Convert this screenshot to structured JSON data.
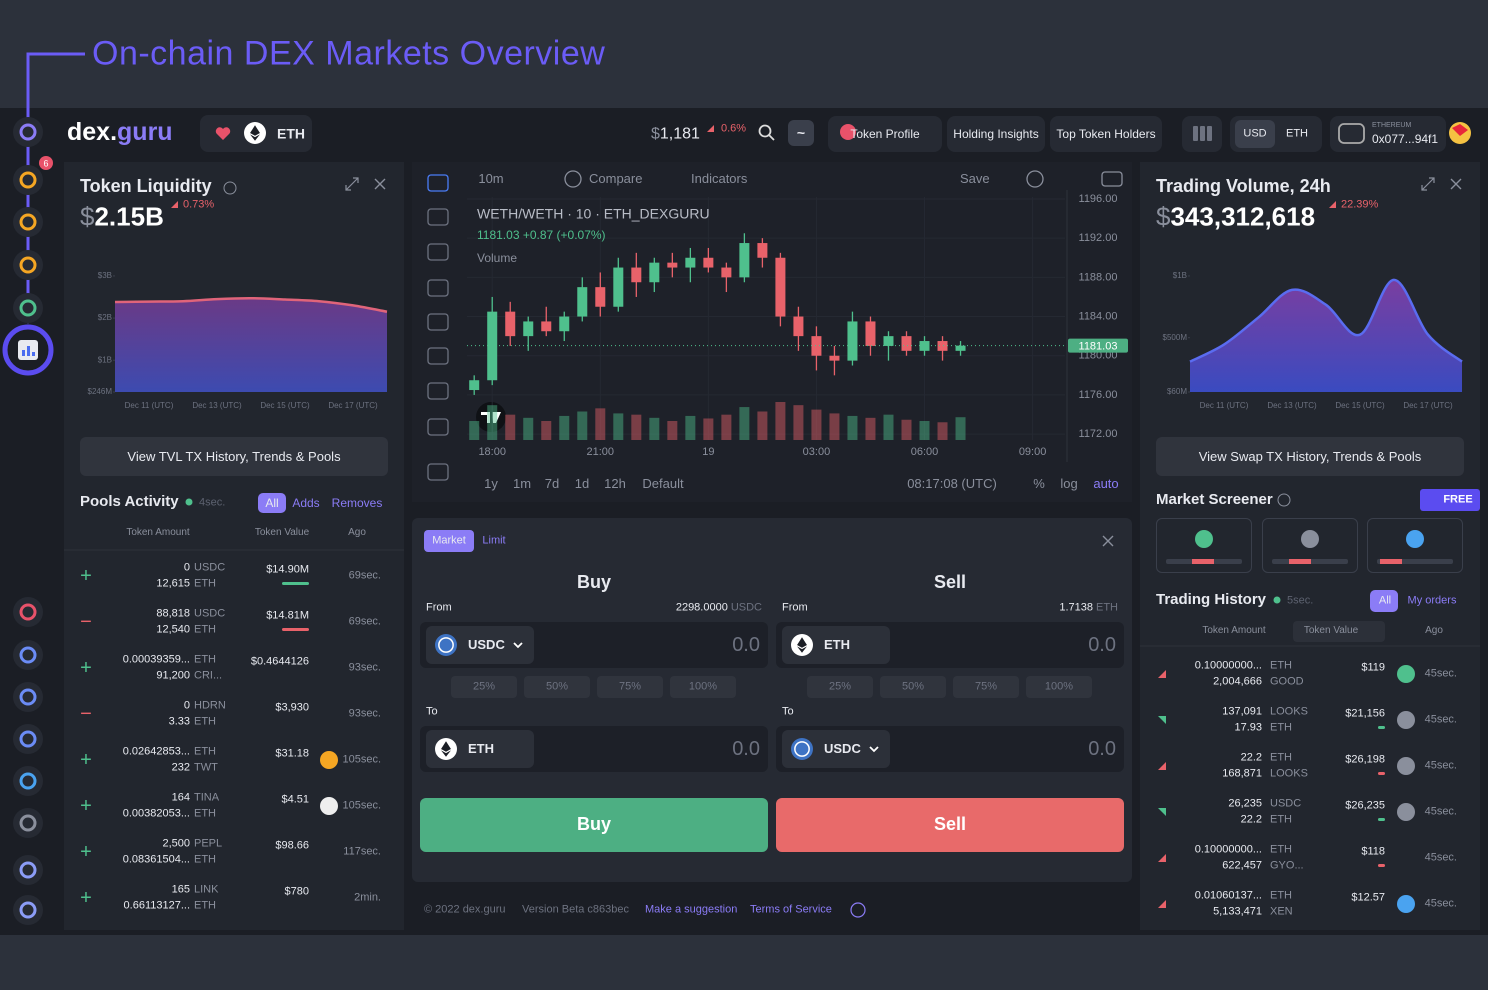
{
  "header": {
    "title": "On-chain DEX Markets Overview"
  },
  "topbar": {
    "logo_dex": "dex.",
    "logo_guru": "guru",
    "token": "ETH",
    "price_currency": "$",
    "price": "1,181",
    "price_change": "0.6%",
    "search_mode": "~",
    "links": [
      "Token Profile",
      "Holding Insights",
      "Top Token Holders"
    ],
    "currencies": [
      "USD",
      "ETH"
    ],
    "network": "ETHEREUM",
    "wallet": "0x077...94f1"
  },
  "sidebar": {
    "notification_count": 6
  },
  "liquidity": {
    "title": "Token Liquidity",
    "currency": "$",
    "value": "2.15B",
    "change": "0.73%",
    "chart": {
      "type": "area",
      "color": "#e0647a",
      "categories": [
        null,
        "Dec 11 (UTC)",
        null,
        "Dec 13 (UTC)",
        null,
        "Dec 15 (UTC)",
        null,
        "Dec 17 (UTC)",
        null
      ],
      "values": [
        2380000000,
        2390000000,
        2400000000,
        2450000000,
        2470000000,
        2440000000,
        2400000000,
        2300000000,
        2150000000
      ],
      "ylim": [
        246000000,
        3330000000
      ],
      "yticks": [
        {
          "value": 246000000,
          "label": "$246M"
        },
        {
          "value": 1000000000,
          "label": "$1B"
        },
        {
          "value": 2000000000,
          "label": "$2B"
        },
        {
          "value": 3000000000,
          "label": "$3B"
        }
      ]
    },
    "button": "View TVL TX History, Trends & Pools"
  },
  "pools": {
    "title": "Pools Activity",
    "refresh": "4sec.",
    "tabs": [
      "All",
      "Adds",
      "Removes"
    ],
    "columns": [
      "Token Amount",
      "Token Value",
      "Ago"
    ],
    "rows": [
      [
        "+",
        "0",
        "USDC",
        "12,615",
        "ETH",
        "$14.90M",
        "69sec."
      ],
      [
        "−",
        "88,818",
        "USDC",
        "12,540",
        "ETH",
        "$14.81M",
        "69sec."
      ],
      [
        "+",
        "0.00039359...",
        "ETH",
        "91,200",
        "CRI...",
        "$0.4644126",
        "93sec."
      ],
      [
        "−",
        "0",
        "HDRN",
        "3.33",
        "ETH",
        "$3,930",
        "93sec."
      ],
      [
        "+",
        "0.02642853...",
        "ETH",
        "232",
        "TWT",
        "$31.18",
        "105sec."
      ],
      [
        "+",
        "164",
        "TINA",
        "0.00382053...",
        "ETH",
        "$4.51",
        "105sec."
      ],
      [
        "+",
        "2,500",
        "PEPL",
        "0.08361504...",
        "ETH",
        "$98.66",
        "117sec."
      ],
      [
        "+",
        "165",
        "LINK",
        "0.66113127...",
        "ETH",
        "$780",
        "2min."
      ]
    ],
    "row_colors": [
      "#4fc08d",
      "#e8626a",
      "#4fc08d",
      "#e8626a",
      "#4fc08d",
      "#4fc08d",
      "#4fc08d",
      "#4fc08d"
    ]
  },
  "chart": {
    "interval": "10m",
    "compare": "Compare",
    "indicators": "Indicators",
    "save": "Save",
    "symbol": "WETH/WETH · 10 · ETH_DEXGURU",
    "legend": "1181.03 +0.87 (+0.07%)",
    "volume_label": "Volume",
    "ranges": [
      "1y",
      "1m",
      "7d",
      "1d",
      "12h"
    ],
    "default": "Default",
    "clock": "08:17:08 (UTC)",
    "scale_options": [
      "%",
      "log",
      "auto"
    ],
    "candles": {
      "type": "candlestick",
      "grid": true,
      "colors": {
        "up": "#4fc08d",
        "down": "#e8626a"
      },
      "x": [
        17.5,
        18,
        18.5,
        19,
        19.5,
        20,
        20.5,
        21,
        21.5,
        22,
        22.5,
        23,
        23.5,
        24,
        24.5,
        25,
        25.5,
        26,
        26.5,
        27,
        27.5,
        28,
        28.5,
        29,
        29.5,
        30,
        30.5,
        31
      ],
      "open": [
        1176.5,
        1177.5,
        1184.5,
        1182,
        1183.5,
        1182.5,
        1184,
        1187,
        1185,
        1189,
        1187.5,
        1189.5,
        1189,
        1190,
        1189,
        1188,
        1191.5,
        1190,
        1184,
        1182,
        1180,
        1179.5,
        1183.5,
        1181,
        1182,
        1180.5,
        1181.5,
        1180.5
      ],
      "high": [
        1178,
        1186,
        1185.5,
        1184,
        1185,
        1184.5,
        1188,
        1188.5,
        1190,
        1190.5,
        1190,
        1190.5,
        1191,
        1191,
        1189.5,
        1192.5,
        1192,
        1190.5,
        1185,
        1183,
        1181,
        1184.5,
        1184,
        1182.5,
        1182.5,
        1182,
        1182,
        1181.5
      ],
      "low": [
        1176,
        1177,
        1181,
        1180.5,
        1182,
        1181.5,
        1183.5,
        1184,
        1184.5,
        1186,
        1186.5,
        1188,
        1187.5,
        1188.5,
        1186.5,
        1187.5,
        1189,
        1183,
        1180.5,
        1178.5,
        1178,
        1179,
        1180,
        1179.5,
        1180,
        1180,
        1179.5,
        1180
      ],
      "close": [
        1177.5,
        1184.5,
        1182,
        1183.5,
        1182.5,
        1184,
        1187,
        1185,
        1189,
        1187.5,
        1189.5,
        1189,
        1190,
        1189,
        1188,
        1191.5,
        1190,
        1184,
        1182,
        1180,
        1179.5,
        1183.5,
        1181,
        1182,
        1180.5,
        1181.5,
        1180.5,
        1181.03
      ],
      "volume": [
        30,
        55,
        40,
        35,
        30,
        38,
        45,
        50,
        42,
        40,
        35,
        30,
        38,
        34,
        40,
        52,
        45,
        60,
        55,
        48,
        42,
        38,
        35,
        40,
        32,
        30,
        28,
        36
      ],
      "xlim": [
        17.3,
        33.9
      ],
      "xticks": [
        {
          "value": 18,
          "label": "18:00"
        },
        {
          "value": 21,
          "label": "21:00"
        },
        {
          "value": 24,
          "label": "19"
        },
        {
          "value": 27,
          "label": "03:00"
        },
        {
          "value": 30,
          "label": "06:00"
        },
        {
          "value": 33,
          "label": "09:00"
        }
      ],
      "ylim": [
        1171.4,
        1196.2
      ],
      "yticks": [
        {
          "value": 1172,
          "label": "1172.00"
        },
        {
          "value": 1176,
          "label": "1176.00"
        },
        {
          "value": 1180,
          "label": "1180.00"
        },
        {
          "value": 1184,
          "label": "1184.00"
        },
        {
          "value": 1188,
          "label": "1188.00"
        },
        {
          "value": 1192,
          "label": "1192.00"
        },
        {
          "value": 1196,
          "label": "1196.00"
        }
      ]
    }
  },
  "trade": {
    "tabs": [
      "Market",
      "Limit"
    ],
    "percents": [
      "25%",
      "50%",
      "75%",
      "100%"
    ],
    "buy": {
      "title": "Buy",
      "from_label": "From",
      "balance": "2298.0000",
      "balance_unit": "USDC",
      "from_token": "USDC",
      "from_amount": "0.0",
      "to_label": "To",
      "to_token": "ETH",
      "to_amount": "0.0",
      "button": "Buy"
    },
    "sell": {
      "title": "Sell",
      "from_label": "From",
      "balance": "1.7138",
      "balance_unit": "ETH",
      "from_token": "ETH",
      "from_amount": "0.0",
      "to_label": "To",
      "to_token": "USDC",
      "to_amount": "0.0",
      "button": "Sell"
    }
  },
  "footer": {
    "copyright": "© 2022 dex.guru",
    "version": "Version Beta c863bec",
    "links": [
      "Make a suggestion",
      "Terms of Service"
    ]
  },
  "volume": {
    "title": "Trading Volume, 24h",
    "currency": "$",
    "value": "343,312,618",
    "change": "22.39%",
    "chart": {
      "type": "area",
      "color": "#5a6cf0",
      "categories": [
        null,
        "Dec 11 (UTC)",
        null,
        "Dec 13 (UTC)",
        null,
        "Dec 15 (UTC)",
        null,
        "Dec 17 (UTC)",
        null
      ],
      "values": [
        306000000,
        444000000,
        661000000,
        887000000,
        766000000,
        524000000,
        968000000,
        524000000,
        306000000
      ],
      "ylim": [
        60000000,
        1113000000
      ],
      "yticks": [
        {
          "value": 60000000,
          "label": "$60M"
        },
        {
          "value": 500000000,
          "label": "$500M"
        },
        {
          "value": 1000000000,
          "label": "$1B"
        }
      ]
    },
    "button": "View Swap TX History, Trends & Pools"
  },
  "screener": {
    "title": "Market Screener",
    "badge": "FREE"
  },
  "history": {
    "title": "Trading History",
    "refresh": "5sec.",
    "tabs": [
      "All",
      "My orders"
    ],
    "columns": [
      "Token Amount",
      "Token Value",
      "Ago"
    ],
    "rows": [
      [
        "0.10000000...",
        "ETH",
        "2,004,666",
        "GOOD",
        "$119",
        "45sec."
      ],
      [
        "137,091",
        "LOOKS",
        "17.93",
        "ETH",
        "$21,156",
        "45sec."
      ],
      [
        "22.2",
        "ETH",
        "168,871",
        "LOOKS",
        "$26,198",
        "45sec."
      ],
      [
        "26,235",
        "USDC",
        "22.2",
        "ETH",
        "$26,235",
        "45sec."
      ],
      [
        "0.10000000...",
        "ETH",
        "622,457",
        "GYO...",
        "$118",
        "45sec."
      ],
      [
        "0.01060137...",
        "ETH",
        "5,133,471",
        "XEN",
        "$12.57",
        "45sec."
      ]
    ],
    "row_colors": [
      "#e8626a",
      "#4fc08d",
      "#e8626a",
      "#4fc08d",
      "#e8626a",
      "#e8626a"
    ]
  }
}
